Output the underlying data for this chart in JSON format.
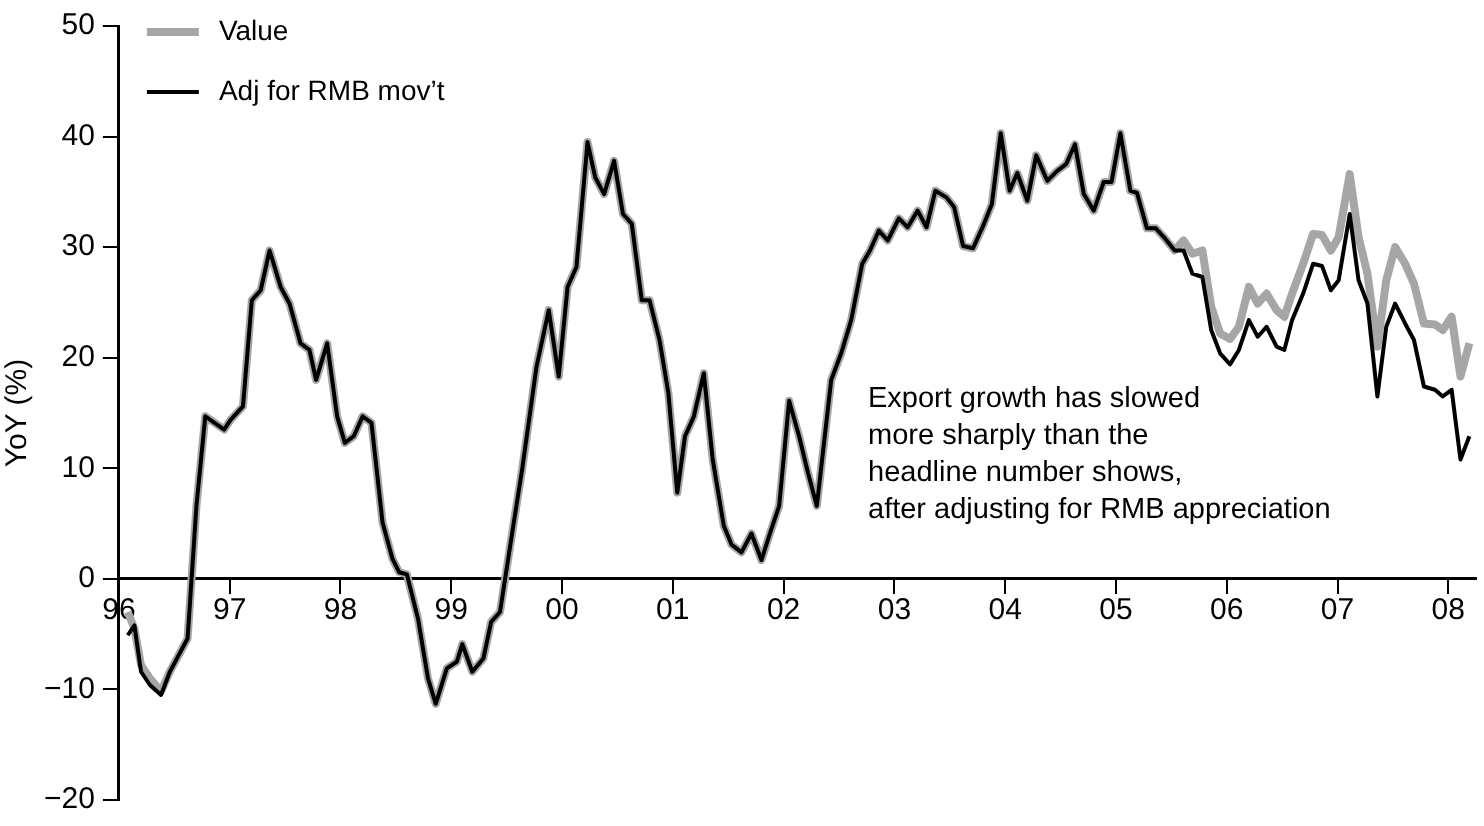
{
  "chart_data": {
    "type": "line",
    "ylabel": "YoY (%)",
    "x": [
      1996.08,
      1996.14,
      1996.2,
      1996.28,
      1996.38,
      1996.46,
      1996.54,
      1996.62,
      1996.7,
      1996.78,
      1996.95,
      1997.01,
      1997.12,
      1997.2,
      1997.28,
      1997.36,
      1997.46,
      1997.54,
      1997.64,
      1997.72,
      1997.78,
      1997.88,
      1997.97,
      1998.04,
      1998.12,
      1998.2,
      1998.28,
      1998.38,
      1998.47,
      1998.53,
      1998.6,
      1998.7,
      1998.79,
      1998.86,
      1998.96,
      1999.05,
      1999.1,
      1999.19,
      1999.29,
      1999.36,
      1999.44,
      1999.56,
      1999.64,
      1999.77,
      1999.88,
      1999.97,
      2000.05,
      2000.13,
      2000.23,
      2000.3,
      2000.38,
      2000.47,
      2000.55,
      2000.63,
      2000.72,
      2000.79,
      2000.88,
      2000.96,
      2001.04,
      2001.11,
      2001.19,
      2001.28,
      2001.36,
      2001.46,
      2001.53,
      2001.62,
      2001.71,
      2001.8,
      2001.88,
      2001.96,
      2002.05,
      2002.14,
      2002.22,
      2002.3,
      2002.43,
      2002.52,
      2002.61,
      2002.71,
      2002.78,
      2002.86,
      2002.94,
      2003.04,
      2003.12,
      2003.21,
      2003.29,
      2003.37,
      2003.47,
      2003.54,
      2003.62,
      2003.71,
      2003.8,
      2003.88,
      2003.96,
      2004.04,
      2004.11,
      2004.2,
      2004.28,
      2004.38,
      2004.47,
      2004.55,
      2004.63,
      2004.71,
      2004.8,
      2004.89,
      2004.96,
      2005.04,
      2005.13,
      2005.19,
      2005.28,
      2005.36,
      2005.45,
      2005.53,
      2005.61,
      2005.69,
      2005.78,
      2005.86,
      2005.94,
      2006.03,
      2006.11,
      2006.2,
      2006.28,
      2006.36,
      2006.45,
      2006.52,
      2006.59,
      2006.69,
      2006.78,
      2006.86,
      2006.94,
      2007.01,
      2007.11,
      2007.19,
      2007.27,
      2007.36,
      2007.44,
      2007.52,
      2007.61,
      2007.69,
      2007.78,
      2007.88,
      2007.95,
      2008.03,
      2008.11,
      2008.19
    ],
    "series": [
      {
        "name": "Value",
        "color": "#a6a6a6",
        "values": [
          -3.0,
          -4.5,
          -7.8,
          -9.0,
          -10.2,
          -8.4,
          -6.9,
          -5.4,
          6.6,
          14.7,
          13.5,
          14.4,
          15.6,
          25.2,
          26.1,
          29.7,
          26.4,
          24.9,
          21.3,
          20.7,
          18.0,
          21.3,
          14.7,
          12.3,
          12.9,
          14.7,
          14.1,
          5.1,
          1.8,
          0.6,
          0.4,
          -3.6,
          -9.0,
          -11.3,
          -8.1,
          -7.5,
          -5.9,
          -8.4,
          -7.2,
          -3.9,
          -3.0,
          4.8,
          9.9,
          19.2,
          24.3,
          18.3,
          26.4,
          28.2,
          39.5,
          36.3,
          34.8,
          37.8,
          33.0,
          32.1,
          25.2,
          25.2,
          21.6,
          16.8,
          7.8,
          12.9,
          14.7,
          18.6,
          10.8,
          4.8,
          3.1,
          2.4,
          4.1,
          1.7,
          4.2,
          6.6,
          16.1,
          12.9,
          9.6,
          6.6,
          18.0,
          20.4,
          23.4,
          28.5,
          29.7,
          31.5,
          30.6,
          32.6,
          31.8,
          33.3,
          31.8,
          35.1,
          34.5,
          33.6,
          30.1,
          29.9,
          31.9,
          33.9,
          40.3,
          35.1,
          36.7,
          34.2,
          38.3,
          36.0,
          36.9,
          37.5,
          39.3,
          34.8,
          33.3,
          35.9,
          35.9,
          40.3,
          35.1,
          34.9,
          31.7,
          31.7,
          30.7,
          29.7,
          30.6,
          29.4,
          29.7,
          24.6,
          22.2,
          21.7,
          22.8,
          26.4,
          24.9,
          25.8,
          24.3,
          23.7,
          25.8,
          28.5,
          31.2,
          31.1,
          29.7,
          30.9,
          36.6,
          30.9,
          27.6,
          21.0,
          27.0,
          30.0,
          28.5,
          26.7,
          23.1,
          23.0,
          22.5,
          23.7,
          18.3,
          21.3
        ]
      },
      {
        "name": "Adj for RMB mov’t",
        "color": "#000000",
        "values": [
          -5.1,
          -4.2,
          -8.4,
          -9.6,
          -10.5,
          -8.4,
          -6.9,
          -5.4,
          6.6,
          14.7,
          13.5,
          14.4,
          15.6,
          25.2,
          26.1,
          29.7,
          26.4,
          24.9,
          21.3,
          20.7,
          18.0,
          21.3,
          14.7,
          12.3,
          12.9,
          14.7,
          14.1,
          5.1,
          1.8,
          0.6,
          0.4,
          -3.6,
          -9.0,
          -11.3,
          -8.1,
          -7.5,
          -5.9,
          -8.4,
          -7.2,
          -3.9,
          -3.0,
          4.8,
          9.9,
          19.2,
          24.3,
          18.3,
          26.4,
          28.2,
          39.5,
          36.3,
          34.8,
          37.8,
          33.0,
          32.1,
          25.2,
          25.2,
          21.6,
          16.8,
          7.8,
          12.9,
          14.7,
          18.6,
          10.8,
          4.8,
          3.1,
          2.4,
          4.1,
          1.7,
          4.2,
          6.6,
          16.1,
          12.9,
          9.6,
          6.6,
          18.0,
          20.4,
          23.4,
          28.5,
          29.7,
          31.5,
          30.6,
          32.6,
          31.8,
          33.3,
          31.8,
          35.1,
          34.5,
          33.6,
          30.1,
          29.9,
          31.9,
          33.9,
          40.3,
          35.1,
          36.7,
          34.2,
          38.3,
          36.0,
          36.9,
          37.5,
          39.3,
          34.8,
          33.3,
          35.9,
          35.9,
          40.3,
          35.1,
          34.9,
          31.7,
          31.7,
          30.7,
          29.7,
          29.7,
          27.6,
          27.3,
          22.5,
          20.4,
          19.4,
          20.7,
          23.4,
          21.9,
          22.8,
          21.0,
          20.7,
          23.4,
          25.8,
          28.5,
          28.3,
          26.1,
          27.0,
          33.0,
          27.0,
          24.9,
          16.5,
          22.8,
          24.9,
          23.1,
          21.6,
          17.4,
          17.1,
          16.5,
          17.1,
          10.8,
          12.9
        ]
      }
    ],
    "xlim": [
      1996,
      2008.25
    ],
    "xticks": [
      {
        "value": 1996,
        "label": "96"
      },
      {
        "value": 1997,
        "label": "97"
      },
      {
        "value": 1998,
        "label": "98"
      },
      {
        "value": 1999,
        "label": "99"
      },
      {
        "value": 2000,
        "label": "00"
      },
      {
        "value": 2001,
        "label": "01"
      },
      {
        "value": 2002,
        "label": "02"
      },
      {
        "value": 2003,
        "label": "03"
      },
      {
        "value": 2004,
        "label": "04"
      },
      {
        "value": 2005,
        "label": "05"
      },
      {
        "value": 2006,
        "label": "06"
      },
      {
        "value": 2007,
        "label": "07"
      },
      {
        "value": 2008,
        "label": "08"
      }
    ],
    "ylim": [
      -20,
      50
    ],
    "yticks": [
      {
        "value": -20,
        "label": "−20"
      },
      {
        "value": -10,
        "label": "−10"
      },
      0,
      10,
      20,
      30,
      40,
      50
    ],
    "annotations": [
      "Export growth has slowed\nmore sharply than the\nheadline number shows,\nafter adjusting for RMB appreciation"
    ],
    "legend": "top left",
    "grid": false,
    "marker": "none",
    "line_style": "solid"
  }
}
